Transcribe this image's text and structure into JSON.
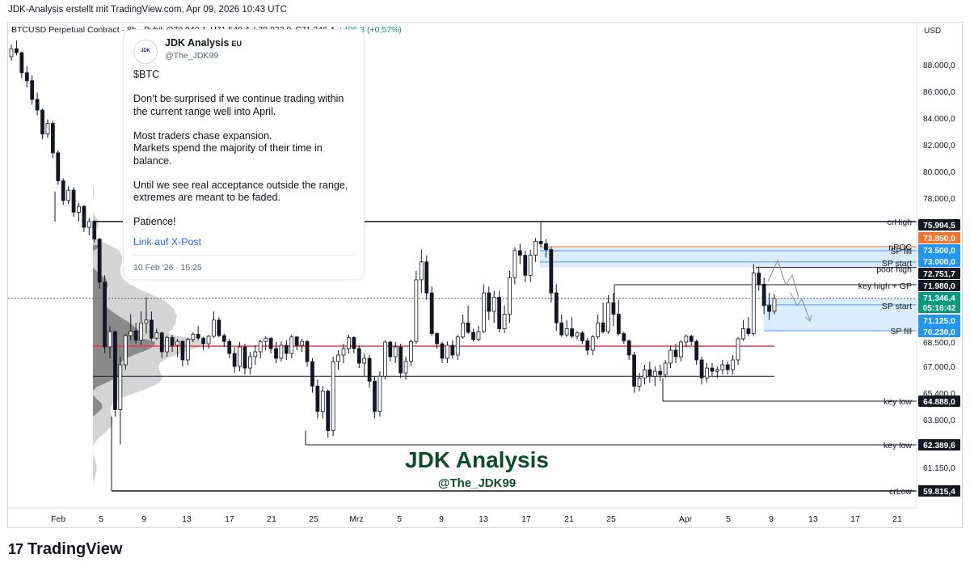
{
  "header": {
    "title": "JDK-Analysis erstellt mit TradingView.com, Apr 09, 2026 10:43 UTC"
  },
  "symbol": {
    "name": "BTCUSD Perpetual Contract · 8h · Bybit",
    "open": "O70.940,1",
    "high": "H71.549,4",
    "low": "L70.832,9",
    "close": "C71.346,4",
    "change": "+406,3 (+0,57%)"
  },
  "tweet": {
    "name": "JDK Analysis",
    "badge": "EU",
    "handle": "@The_JDK99",
    "avatar_text": "JDK",
    "body": [
      "$BTC",
      "Don’t be surprised if we continue trading within the current range well into April.",
      "Most traders chase expansion.\nMarkets spend the majority of their time in balance.",
      "Until we see real acceptance outside the range, extremes are meant to be faded.",
      "Patience!"
    ],
    "link": "Link auf X-Post",
    "date": "10 Feb '26 · 15:25"
  },
  "footer": {
    "brand": "TradingView",
    "logo": "17"
  },
  "colors": {
    "up": "#089981",
    "down": "#131722",
    "poc": "#f23645",
    "zone": "#bbdefb",
    "crhigh_label": "#f7722a",
    "blue_label": "#2196f3"
  },
  "chart_data": {
    "type": "candlestick",
    "currency": "USD",
    "timeframe": "8h",
    "watermark": {
      "title": "JDK Analysis",
      "subtitle": "@The_JDK99"
    },
    "x_tick_labels": [
      "Feb",
      "5",
      "9",
      "13",
      "17",
      "21",
      "25",
      "Mrz",
      "5",
      "9",
      "13",
      "17",
      "21",
      "25",
      "Apr",
      "5",
      "9",
      "13",
      "17",
      "21"
    ],
    "y_tick_labels": [
      "88.000,0",
      "86.000,0",
      "84.000,0",
      "82.000,0",
      "80.000,0",
      "78.000,0",
      "68.500,0",
      "67.000,0",
      "65.400,0",
      "63.800,0",
      "61.150,0"
    ],
    "price_labels": [
      {
        "text": "75.994,5",
        "kind": "dark"
      },
      {
        "text": "73.850,0",
        "kind": "orange"
      },
      {
        "text": "73.500,0",
        "kind": "blue"
      },
      {
        "text": "73.000,0",
        "kind": "blue"
      },
      {
        "text": "72.751,7",
        "kind": "dark"
      },
      {
        "text": "71.980,0",
        "kind": "dark"
      },
      {
        "text": "71.346,4",
        "kind": "green"
      },
      {
        "text": "05:16:42",
        "kind": "green"
      },
      {
        "text": "71.125,0",
        "kind": "blue"
      },
      {
        "text": "70.230,0",
        "kind": "blue"
      },
      {
        "text": "64.888,0",
        "kind": "dark"
      },
      {
        "text": "62.389,6",
        "kind": "dark"
      },
      {
        "text": "59.815,4",
        "kind": "dark"
      }
    ],
    "levels": [
      {
        "label": "crHigh",
        "price": 75994.5
      },
      {
        "label": "nPOC",
        "price": 73850
      },
      {
        "label": "SP fill",
        "price": 73500
      },
      {
        "label": "SP start",
        "price": 73000
      },
      {
        "label": "poor high",
        "price": 72751.7
      },
      {
        "label": "key high + GP",
        "price": 71980
      },
      {
        "label": "SP start",
        "price": 71125
      },
      {
        "label": "SP fill",
        "price": 70230
      },
      {
        "label": "key low",
        "price": 64888
      },
      {
        "label": "key low",
        "price": 62389.6
      },
      {
        "label": "crLow",
        "price": 59815.4
      }
    ],
    "poc_price": 68250,
    "range_high": 76000,
    "range_low": 66400,
    "candles": [
      [
        88600,
        89500,
        88300,
        89200
      ],
      [
        89200,
        89800,
        88700,
        88900
      ],
      [
        88900,
        89000,
        87000,
        87400
      ],
      [
        87400,
        87900,
        86300,
        86800
      ],
      [
        86800,
        87200,
        85000,
        85400
      ],
      [
        85400,
        85900,
        84200,
        84600
      ],
      [
        84600,
        84700,
        82400,
        82800
      ],
      [
        82800,
        83900,
        82500,
        83600
      ],
      [
        83600,
        83800,
        81000,
        81400
      ],
      [
        81400,
        81600,
        79000,
        79300
      ],
      [
        79300,
        79500,
        77400,
        77800
      ],
      [
        77800,
        78900,
        77500,
        78600
      ],
      [
        78600,
        78800,
        76400,
        76800
      ],
      [
        76800,
        77600,
        76000,
        77300
      ],
      [
        77300,
        77400,
        75100,
        75500
      ],
      [
        75500,
        76300,
        74800,
        76000
      ],
      [
        76000,
        76100,
        74200,
        74500
      ],
      [
        74500,
        74600,
        71800,
        72100
      ],
      [
        72100,
        72400,
        67800,
        68200
      ],
      [
        68200,
        70400,
        67500,
        70100
      ],
      [
        70100,
        70200,
        64000,
        64400
      ],
      [
        64400,
        67600,
        62400,
        67100
      ],
      [
        67100,
        69800,
        66800,
        69500
      ],
      [
        69500,
        70800,
        68800,
        70200
      ],
      [
        70200,
        70500,
        68400,
        68800
      ],
      [
        68800,
        70900,
        68300,
        70500
      ],
      [
        70500,
        71400,
        69800,
        70600
      ],
      [
        70600,
        70900,
        68700,
        69100
      ],
      [
        69100,
        70300,
        68800,
        69900
      ],
      [
        69900,
        70100,
        67500,
        67900
      ],
      [
        67900,
        69500,
        67600,
        69200
      ],
      [
        69200,
        69600,
        67900,
        68300
      ],
      [
        68300,
        69000,
        67600,
        68600
      ],
      [
        68600,
        68800,
        67000,
        67400
      ],
      [
        67400,
        69200,
        67100,
        68900
      ],
      [
        68900,
        70000,
        68500,
        69700
      ],
      [
        69700,
        70400,
        68800,
        69100
      ],
      [
        69100,
        69300,
        68000,
        68400
      ],
      [
        68400,
        69600,
        68100,
        69400
      ],
      [
        69400,
        70900,
        69100,
        70600
      ],
      [
        70600,
        70700,
        69200,
        69500
      ],
      [
        69500,
        69800,
        68200,
        68600
      ],
      [
        68600,
        69000,
        67500,
        67800
      ],
      [
        67800,
        68200,
        66600,
        67000
      ],
      [
        67000,
        68500,
        66700,
        68200
      ],
      [
        68200,
        68400,
        66500,
        66900
      ],
      [
        66900,
        67900,
        66500,
        67600
      ],
      [
        67600,
        68300,
        67100,
        67900
      ],
      [
        67900,
        68900,
        67500,
        68600
      ],
      [
        68600,
        69400,
        68000,
        69100
      ],
      [
        69100,
        69200,
        67800,
        68100
      ],
      [
        68100,
        68500,
        67200,
        67500
      ],
      [
        67500,
        68600,
        67300,
        68300
      ],
      [
        68300,
        68800,
        67400,
        67800
      ],
      [
        67800,
        69600,
        67500,
        69300
      ],
      [
        69300,
        69400,
        68000,
        68300
      ],
      [
        68300,
        69000,
        67900,
        68600
      ],
      [
        68600,
        68800,
        67000,
        67300
      ],
      [
        67300,
        67500,
        65400,
        65800
      ],
      [
        65800,
        66200,
        63900,
        64300
      ],
      [
        64300,
        65800,
        63900,
        65500
      ],
      [
        65500,
        65600,
        62800,
        63200
      ],
      [
        63200,
        67600,
        62900,
        67300
      ],
      [
        67300,
        68000,
        66800,
        67700
      ],
      [
        67700,
        68400,
        67200,
        68100
      ],
      [
        68100,
        69600,
        67800,
        69200
      ],
      [
        69200,
        69400,
        67800,
        68100
      ],
      [
        68100,
        68300,
        66900,
        67200
      ],
      [
        67200,
        67800,
        66400,
        67500
      ],
      [
        67500,
        67700,
        65700,
        66100
      ],
      [
        66100,
        66400,
        63900,
        64300
      ],
      [
        64300,
        66700,
        64000,
        66400
      ],
      [
        66400,
        68800,
        66200,
        68500
      ],
      [
        68500,
        68700,
        67300,
        67600
      ],
      [
        67600,
        68500,
        67200,
        68200
      ],
      [
        68200,
        68400,
        66300,
        66600
      ],
      [
        66600,
        67600,
        66200,
        67300
      ],
      [
        67300,
        68900,
        67000,
        68600
      ],
      [
        68600,
        72600,
        68400,
        72200
      ],
      [
        72200,
        73600,
        71600,
        73000
      ],
      [
        73000,
        73300,
        71300,
        71600
      ],
      [
        71600,
        71900,
        69400,
        69800
      ],
      [
        69800,
        70000,
        68100,
        68400
      ],
      [
        68400,
        68600,
        67200,
        67500
      ],
      [
        67500,
        68600,
        67200,
        68300
      ],
      [
        68300,
        68800,
        67500,
        67700
      ],
      [
        67700,
        69600,
        67400,
        69300
      ],
      [
        69300,
        70800,
        69000,
        70500
      ],
      [
        70500,
        71100,
        69700,
        70000
      ],
      [
        70000,
        70300,
        68600,
        68900
      ],
      [
        68900,
        70400,
        68600,
        70100
      ],
      [
        70100,
        72000,
        69900,
        71600
      ],
      [
        71600,
        71900,
        70600,
        70900
      ],
      [
        70900,
        71700,
        70500,
        71400
      ],
      [
        71400,
        71700,
        70000,
        70300
      ],
      [
        70300,
        71100,
        69900,
        70800
      ],
      [
        70800,
        72600,
        70500,
        72300
      ],
      [
        72300,
        73800,
        72000,
        73500
      ],
      [
        73500,
        74100,
        72900,
        73300
      ],
      [
        73300,
        73500,
        72100,
        72400
      ],
      [
        72400,
        73600,
        72100,
        73300
      ],
      [
        73300,
        74600,
        73000,
        74300
      ],
      [
        74300,
        76000,
        73800,
        74100
      ],
      [
        74100,
        74500,
        73200,
        73600
      ],
      [
        73600,
        73800,
        71200,
        71600
      ],
      [
        71600,
        72000,
        70200,
        70500
      ],
      [
        70500,
        70800,
        69300,
        69600
      ],
      [
        69600,
        70600,
        69300,
        70300
      ],
      [
        70300,
        70700,
        69100,
        69400
      ],
      [
        69400,
        70200,
        68900,
        69900
      ],
      [
        69900,
        70200,
        68400,
        68700
      ],
      [
        68700,
        69100,
        67700,
        68000
      ],
      [
        68000,
        69600,
        67700,
        69300
      ],
      [
        69300,
        70800,
        69000,
        70500
      ],
      [
        70500,
        71200,
        69800,
        70100
      ],
      [
        70100,
        71500,
        69800,
        71200
      ],
      [
        71200,
        71600,
        70400,
        70800
      ],
      [
        70800,
        71300,
        69500,
        69800
      ],
      [
        69800,
        70100,
        68400,
        68700
      ],
      [
        68700,
        68900,
        67400,
        67700
      ],
      [
        67700,
        67900,
        65400,
        65800
      ],
      [
        65800,
        66600,
        65500,
        66300
      ],
      [
        66300,
        67100,
        65900,
        66800
      ],
      [
        66800,
        67300,
        66000,
        66400
      ],
      [
        66400,
        67000,
        65800,
        66700
      ],
      [
        66700,
        67100,
        66100,
        66500
      ],
      [
        66500,
        67400,
        66300,
        67200
      ],
      [
        67200,
        68300,
        66900,
        68000
      ],
      [
        68000,
        68400,
        67200,
        67600
      ],
      [
        67600,
        68800,
        67300,
        68500
      ],
      [
        68500,
        69700,
        68200,
        69400
      ],
      [
        69400,
        69600,
        68300,
        68600
      ],
      [
        68600,
        68900,
        67100,
        67400
      ],
      [
        67400,
        67600,
        65900,
        66300
      ],
      [
        66300,
        67200,
        66000,
        66900
      ],
      [
        66900,
        67200,
        66400,
        66700
      ],
      [
        66700,
        67000,
        66300,
        66800
      ],
      [
        66800,
        67400,
        66500,
        67100
      ],
      [
        67100,
        67300,
        66500,
        66800
      ],
      [
        66800,
        67700,
        66500,
        67400
      ],
      [
        67400,
        69300,
        67100,
        69000
      ],
      [
        69000,
        70600,
        68700,
        70300
      ],
      [
        70300,
        70700,
        69400,
        69800
      ],
      [
        69800,
        72900,
        69400,
        72500
      ],
      [
        72500,
        72800,
        71700,
        72000
      ],
      [
        72000,
        72300,
        70800,
        71100
      ],
      [
        71100,
        71600,
        70600,
        70900
      ],
      [
        70900,
        71550,
        70800,
        71346
      ]
    ]
  }
}
